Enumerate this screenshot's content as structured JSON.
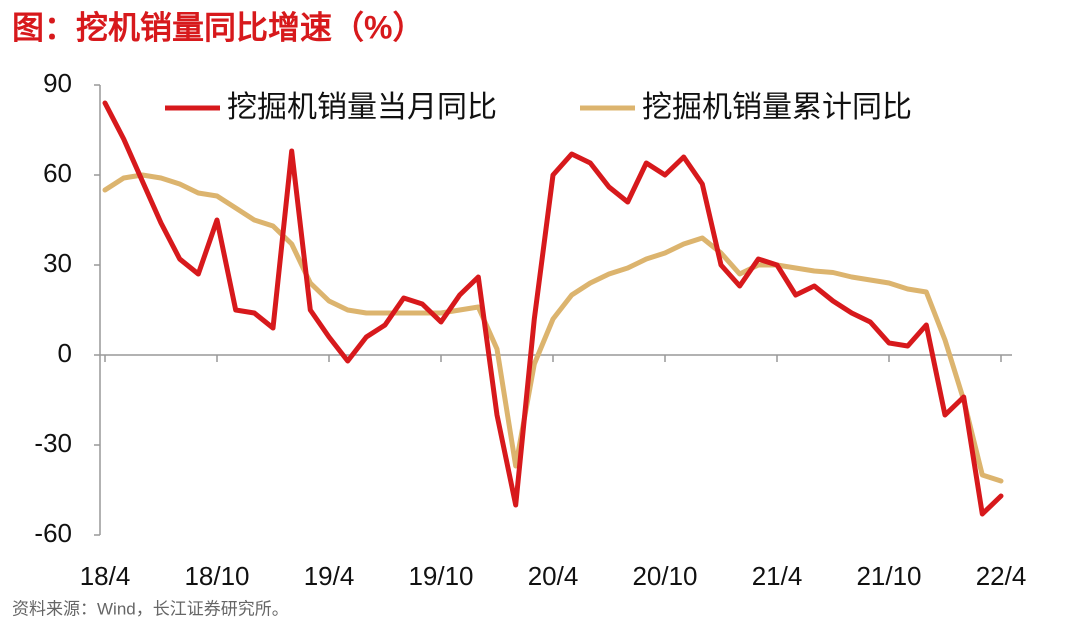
{
  "chart_data": {
    "type": "line",
    "title": "图：挖机销量同比增速（%）",
    "source": "资料来源：Wind，长江证券研究所。",
    "categories": [
      "18/4",
      null,
      null,
      null,
      null,
      null,
      "18/10",
      null,
      null,
      null,
      null,
      null,
      "19/4",
      null,
      null,
      null,
      null,
      null,
      "19/10",
      null,
      null,
      null,
      null,
      null,
      "20/4",
      null,
      null,
      null,
      null,
      null,
      "20/10",
      null,
      null,
      null,
      null,
      null,
      "21/4",
      null,
      null,
      null,
      null,
      null,
      "21/10",
      null,
      null,
      null,
      null,
      null,
      "22/4"
    ],
    "series": [
      {
        "name": "挖掘机销量当月同比",
        "color": "#d7191c",
        "values": [
          84,
          72,
          58,
          44,
          32,
          27,
          45,
          15,
          14,
          9,
          68,
          15,
          6,
          -2,
          6,
          10,
          19,
          17,
          11,
          20,
          26,
          -20,
          -50,
          12,
          60,
          67,
          64,
          56,
          51,
          64,
          60,
          66,
          57,
          30,
          23,
          32,
          30,
          20,
          23,
          18,
          14,
          11,
          4,
          3,
          10,
          -20,
          -14,
          -53,
          -47
        ]
      },
      {
        "name": "挖掘机销量累计同比",
        "color": "#dcb46e",
        "values": [
          55,
          59,
          60,
          59,
          57,
          54,
          53,
          49,
          45,
          43,
          37,
          24,
          18,
          15,
          14,
          14,
          14,
          14,
          14,
          15,
          16,
          2,
          -37,
          -3,
          12,
          20,
          24,
          27,
          29,
          32,
          34,
          37,
          39,
          34,
          27,
          30,
          30,
          29,
          28,
          27.5,
          26,
          25,
          24,
          22,
          21,
          5,
          -15,
          -40,
          -42
        ]
      }
    ],
    "ylim": [
      -60,
      90
    ],
    "yticks": [
      -60,
      -30,
      0,
      30,
      60,
      90
    ],
    "grid": false,
    "legend": "top"
  }
}
